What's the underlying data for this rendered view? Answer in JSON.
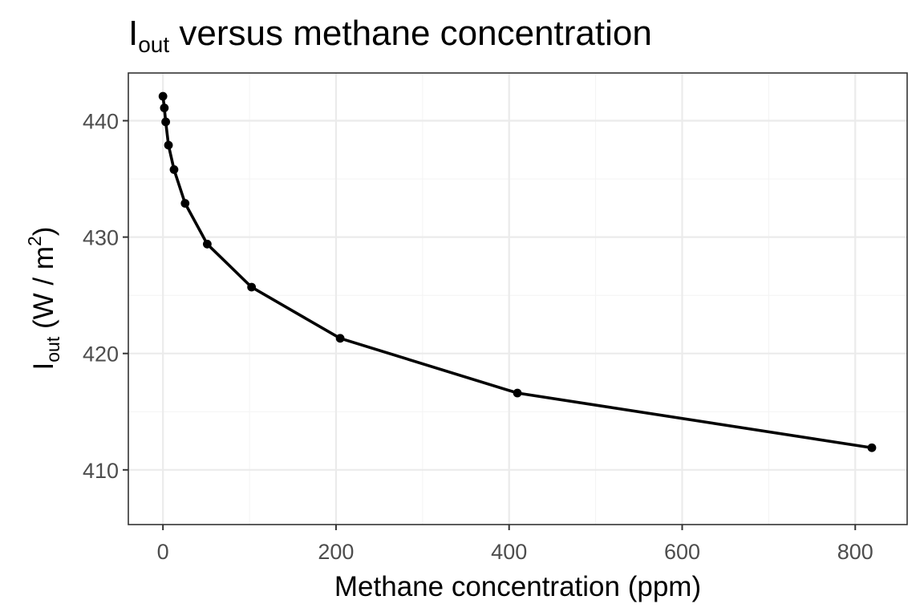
{
  "chart_data": {
    "type": "line",
    "title": {
      "main": "I",
      "sub": "out",
      "rest": " versus methane concentration"
    },
    "xlabel": "Methane concentration (ppm)",
    "ylabel": {
      "main": "I",
      "sub": "out",
      "open": " (W",
      "slash": " / ",
      "m": "m",
      "sup": "2",
      "close": ")"
    },
    "xlim": [
      -40,
      860
    ],
    "ylim": [
      405.3,
      444.1
    ],
    "xticks": [
      0,
      200,
      400,
      600,
      800
    ],
    "xtick_labels": [
      "0",
      "200",
      "400",
      "600",
      "800"
    ],
    "yticks": [
      410,
      420,
      430,
      440
    ],
    "ytick_labels": [
      "410",
      "420",
      "430",
      "440"
    ],
    "xminor": [
      100,
      300,
      500,
      700
    ],
    "yminor": [
      415,
      425,
      435
    ],
    "grid": true,
    "legend": "none",
    "series": [
      {
        "color": "#000000",
        "x": [
          0,
          1.6,
          3.2,
          6.4,
          12.8,
          25.6,
          51.2,
          102.4,
          204.8,
          409.6,
          819.2
        ],
        "y": [
          442.1,
          441.1,
          439.9,
          437.9,
          435.8,
          432.9,
          429.4,
          425.7,
          421.3,
          416.6,
          411.9
        ]
      }
    ]
  }
}
